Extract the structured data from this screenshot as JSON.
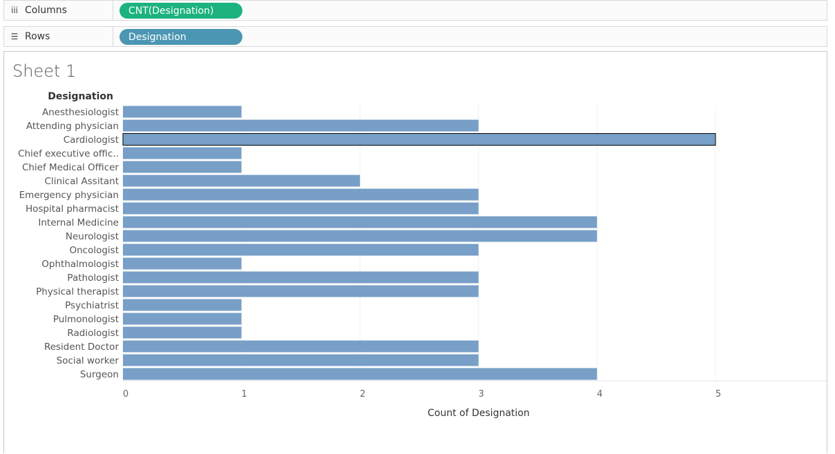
{
  "shelves": {
    "columns": {
      "label": "Columns",
      "glyph": "iii",
      "pill": "CNT(Designation)",
      "pill_color": "#1cb37e"
    },
    "rows": {
      "label": "Rows",
      "glyph": "☰",
      "pill": "Designation",
      "pill_color": "#4b96b3"
    }
  },
  "sheet": {
    "title": "Sheet 1"
  },
  "chart_data": {
    "type": "bar",
    "orientation": "horizontal",
    "row_header": "Designation",
    "categories": [
      "Anesthesiologist",
      "Attending physician",
      "Cardiologist",
      "Chief executive offic..",
      "Chief Medical Officer",
      "Clinical Assitant",
      "Emergency physician",
      "Hospital pharmacist",
      "Internal Medicine",
      "Neurologist",
      "Oncologist",
      "Ophthalmologist",
      "Pathologist",
      "Physical therapist",
      "Psychiatrist",
      "Pulmonologist",
      "Radiologist",
      "Resident Doctor",
      "Social worker",
      "Surgeon"
    ],
    "values": [
      1,
      3,
      5,
      1,
      1,
      2,
      3,
      3,
      4,
      4,
      3,
      1,
      3,
      3,
      1,
      1,
      1,
      3,
      3,
      4
    ],
    "xlabel": "Count of Designation",
    "xticks": [
      0,
      1,
      2,
      3,
      4,
      5
    ],
    "xlim": [
      0,
      6.1
    ],
    "grid": "vertical",
    "bar_color": "#779fc7",
    "highlighted_category": "Cardiologist"
  }
}
